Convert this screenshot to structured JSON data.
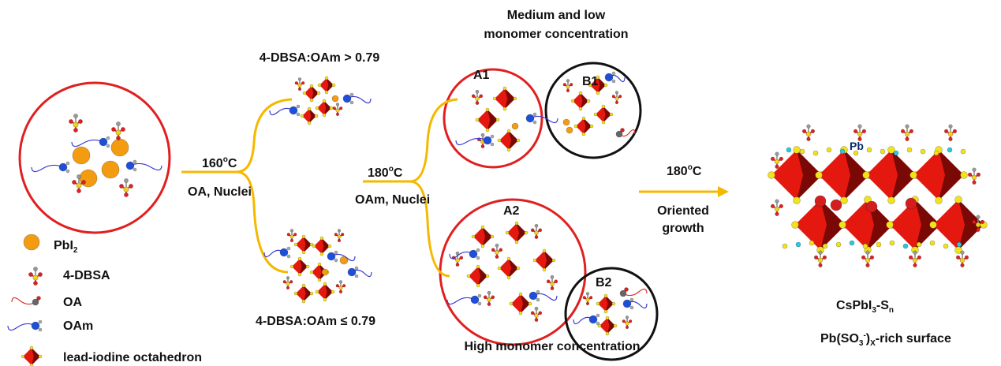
{
  "legend": {
    "items": [
      {
        "label": [
          "PbI",
          "2"
        ]
      },
      {
        "label": [
          "4-DBSA"
        ]
      },
      {
        "label": [
          "OA"
        ]
      },
      {
        "label": [
          "OAm"
        ]
      },
      {
        "label": [
          "lead-iodine octahedron"
        ]
      }
    ]
  },
  "step1": {
    "temperature": [
      "160",
      "o",
      "C"
    ],
    "condition": "OA, Nuclei",
    "upper_ratio": "4-DBSA:OAm > 0.79",
    "lower_ratio": "4-DBSA:OAm ≤ 0.79"
  },
  "step2": {
    "temperature": [
      "180",
      "o",
      "C"
    ],
    "condition": "OAm, Nuclei",
    "upper_title": [
      "Medium and low",
      "monomer concentration"
    ],
    "lower_title": "High monomer concentration",
    "regions": [
      "A1",
      "B1",
      "A2",
      "B2"
    ]
  },
  "step3": {
    "temperature": [
      "180",
      "o",
      "C"
    ],
    "condition": [
      "Oriented",
      "growth"
    ]
  },
  "product": {
    "atom_label": "Pb",
    "name": [
      "CsPbI",
      "3",
      "-S",
      "n"
    ],
    "surface": [
      "Pb(SO",
      "3",
      "-",
      ")",
      "X",
      "-rich surface"
    ]
  }
}
